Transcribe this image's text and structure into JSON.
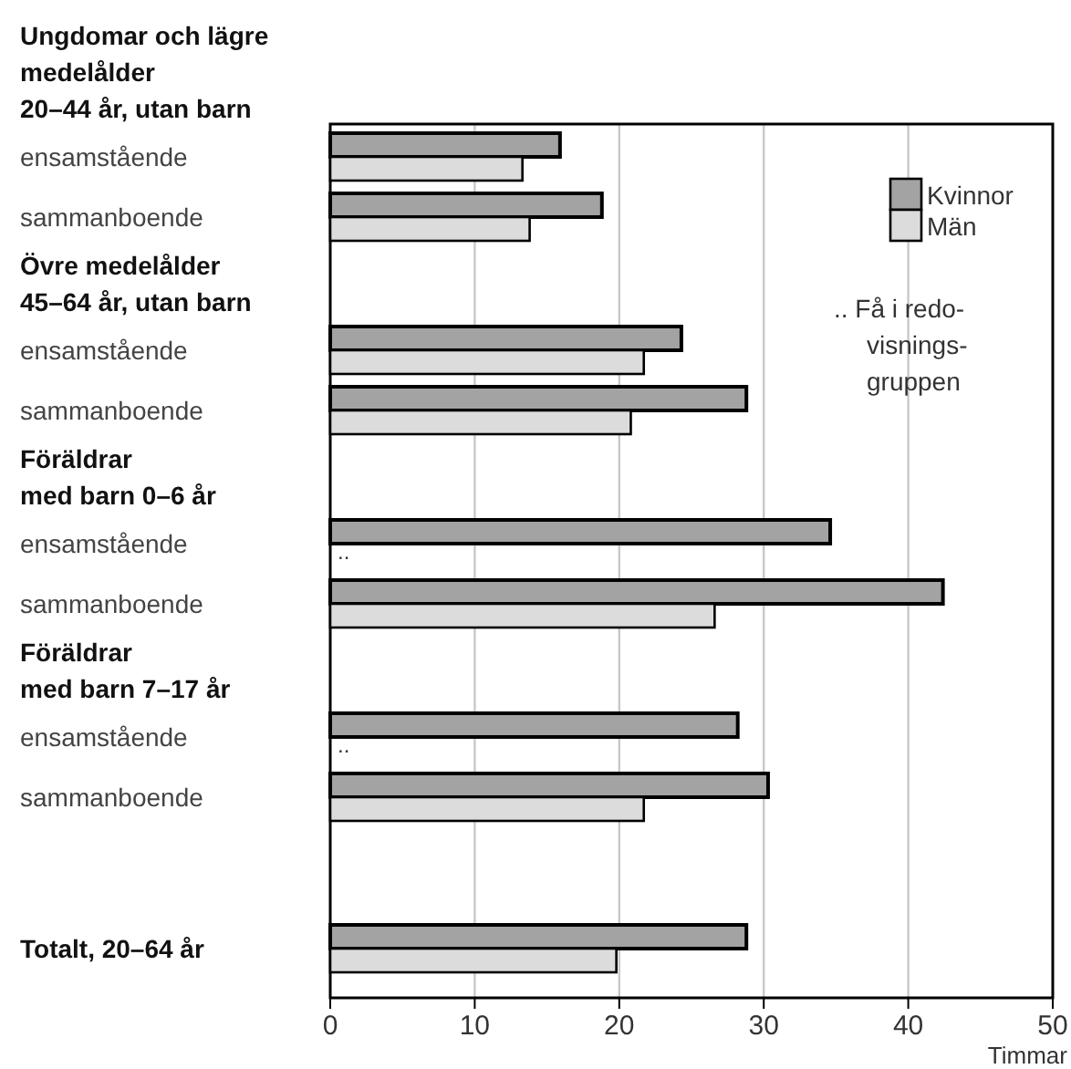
{
  "chart_data": {
    "type": "bar",
    "orientation": "horizontal",
    "categories": [
      "Ungdomar och lägre\nmedelålder\n20–44 år, utan barn",
      "ensamstående",
      "sammanboende",
      "Övre medelålder\n45–64 år, utan barn",
      "ensamstående",
      "sammanboende",
      "Föräldrar\nmed barn 0–6 år",
      "ensamstående",
      "sammanboende",
      "Föräldrar\nmed barn 7–17 år",
      "ensamstående",
      "sammanboende",
      null,
      "Totalt, 20–64 år"
    ],
    "series": [
      {
        "name": "Kvinnor",
        "color": "#a3a3a3",
        "values": [
          null,
          15.9,
          18.8,
          null,
          24.3,
          28.8,
          null,
          34.6,
          42.4,
          null,
          28.2,
          30.3,
          null,
          28.8
        ]
      },
      {
        "name": "Män",
        "color": "#dcdcdc",
        "values": [
          null,
          13.3,
          13.8,
          null,
          21.7,
          20.8,
          null,
          null,
          26.6,
          null,
          null,
          21.7,
          null,
          19.8
        ],
        "value_labels": [
          null,
          null,
          null,
          null,
          null,
          null,
          null,
          "..",
          null,
          null,
          "..",
          null,
          null,
          null
        ]
      }
    ],
    "xlim": [
      0,
      50
    ],
    "xticks": [
      0,
      10,
      20,
      30,
      40,
      50
    ],
    "xlabel": "Timmar",
    "grid": "x",
    "legend": "top right",
    "annotations": [
      ".. Få i redo-\nvisnings-\ngruppen"
    ]
  }
}
